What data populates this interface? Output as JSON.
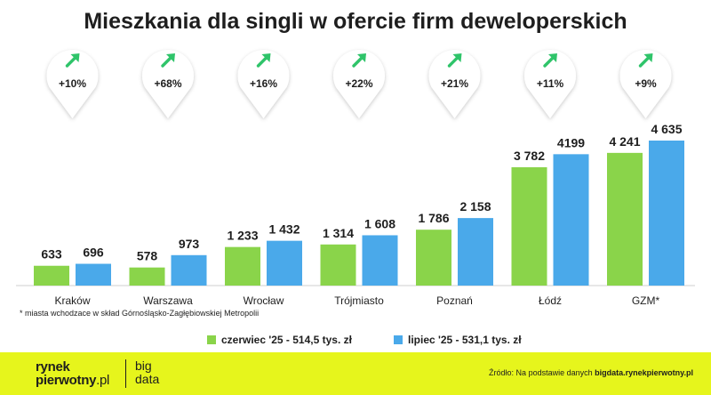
{
  "footnote": "* miasta wchodzace w skład Górnośląsko-Zagłębiowskiej Metropolii",
  "footer": {
    "logo_line1": "rynek",
    "logo_line2a": "pierwotny",
    "logo_line2b": ".pl",
    "logo_sub1": "big",
    "logo_sub2": "data",
    "source_prefix": "Źródło: Na podstawie danych",
    "source_site": "bigdata.rynekpierwotny.pl"
  },
  "colors": {
    "green": "#8ad44a",
    "blue": "#4aa9ea",
    "arrow": "#2fc46a",
    "footer": "#e6f51c"
  },
  "chart_data": {
    "type": "bar",
    "title": "Mieszkania dla singli w ofercie firm deweloperskich",
    "categories": [
      "Kraków",
      "Warszawa",
      "Wrocław",
      "Trójmiasto",
      "Poznań",
      "Łódź",
      "GZM*"
    ],
    "series": [
      {
        "name": "czerwiec '25 - 514,5 tys. zł",
        "values": [
          633,
          578,
          1233,
          1314,
          1786,
          3782,
          4241
        ],
        "labels": [
          "633",
          "578",
          "1 233",
          "1 314",
          "1 786",
          "3 782",
          "4 241"
        ]
      },
      {
        "name": "lipiec '25 - 531,1 tys. zł",
        "values": [
          696,
          973,
          1432,
          1608,
          2158,
          4199,
          4635
        ],
        "labels": [
          "696",
          "973",
          "1 432",
          "1 608",
          "2 158",
          "4199",
          "4 635"
        ]
      }
    ],
    "changes": [
      "+10%",
      "+68%",
      "+16%",
      "+22%",
      "+21%",
      "+11%",
      "+9%"
    ],
    "ylim": [
      0,
      4635
    ],
    "xlabel": "",
    "ylabel": "",
    "grid": false
  }
}
